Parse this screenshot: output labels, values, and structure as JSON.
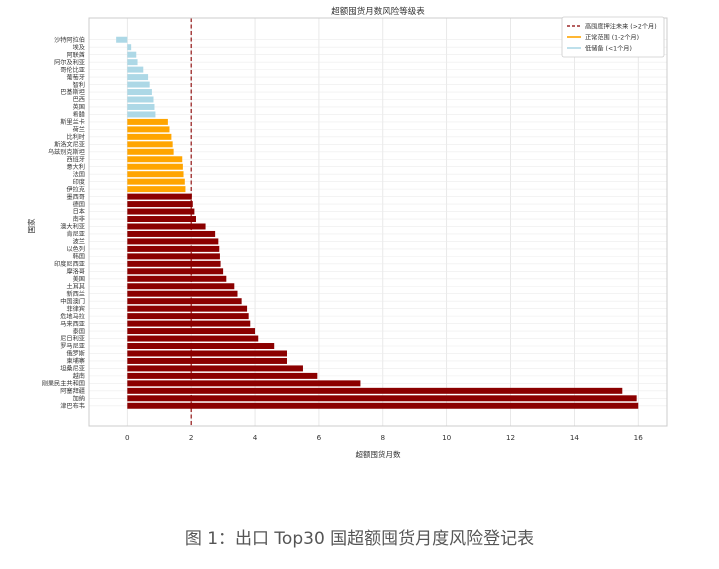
{
  "caption": "图 1：出口 Top30 国超额囤货月度风险登记表",
  "chart_data": {
    "type": "bar",
    "orientation": "horizontal",
    "title": "超额囤货月数风险等级表",
    "xlabel": "超额囤货月数",
    "ylabel": "国家",
    "xlim": [
      -1.2,
      16.9
    ],
    "xticks": [
      0,
      2,
      4,
      6,
      8,
      10,
      12,
      14,
      16
    ],
    "grid": true,
    "legend_position": "top-right",
    "threshold": {
      "value": 2,
      "label": "高囤度押注未来 (>2个月)",
      "color": "#8b0000"
    },
    "series": [
      {
        "name": "高囤度押注未来 (>2个月)",
        "color": "#8b0000"
      },
      {
        "name": "正常范围 (1-2个月)",
        "color": "#ffa500"
      },
      {
        "name": "低储备 (<1个月)",
        "color": "#add8e6"
      }
    ],
    "categories": [
      "沙特阿拉伯",
      "埃及",
      "阿联酋",
      "阿尔及利亚",
      "哥伦比亚",
      "葡萄牙",
      "智利",
      "巴基斯坦",
      "巴西",
      "英国",
      "希腊",
      "斯里兰卡",
      "荷兰",
      "比利时",
      "斯洛文尼亚",
      "乌兹别克斯坦",
      "西班牙",
      "意大利",
      "法国",
      "印度",
      "伊拉克",
      "墨西哥",
      "德国",
      "日本",
      "南非",
      "澳大利亚",
      "肯尼亚",
      "波兰",
      "以色列",
      "韩国",
      "印度尼西亚",
      "摩洛哥",
      "美国",
      "土耳其",
      "新西兰",
      "中国澳门",
      "菲律宾",
      "危地马拉",
      "马来西亚",
      "泰国",
      "尼日利亚",
      "罗马尼亚",
      "俄罗斯",
      "柬埔寨",
      "坦桑尼亚",
      "越南",
      "刚果民主共和国",
      "阿塞拜疆",
      "加纳",
      "津巴布韦"
    ],
    "values": [
      -0.35,
      0.12,
      0.28,
      0.32,
      0.5,
      0.65,
      0.7,
      0.77,
      0.82,
      0.85,
      0.88,
      1.27,
      1.32,
      1.38,
      1.42,
      1.45,
      1.72,
      1.74,
      1.76,
      1.8,
      1.82,
      2.02,
      2.05,
      2.1,
      2.15,
      2.45,
      2.75,
      2.85,
      2.88,
      2.9,
      2.92,
      3.0,
      3.1,
      3.35,
      3.45,
      3.58,
      3.75,
      3.8,
      3.85,
      4.0,
      4.1,
      4.6,
      5.0,
      5.0,
      5.5,
      5.95,
      7.3,
      15.5,
      15.95,
      16.0
    ],
    "levels": [
      "low",
      "low",
      "low",
      "low",
      "low",
      "low",
      "low",
      "low",
      "low",
      "low",
      "low",
      "normal",
      "normal",
      "normal",
      "normal",
      "normal",
      "normal",
      "normal",
      "normal",
      "normal",
      "normal",
      "high",
      "high",
      "high",
      "high",
      "high",
      "high",
      "high",
      "high",
      "high",
      "high",
      "high",
      "high",
      "high",
      "high",
      "high",
      "high",
      "high",
      "high",
      "high",
      "high",
      "high",
      "high",
      "high",
      "high",
      "high",
      "high",
      "high",
      "high",
      "high"
    ]
  }
}
